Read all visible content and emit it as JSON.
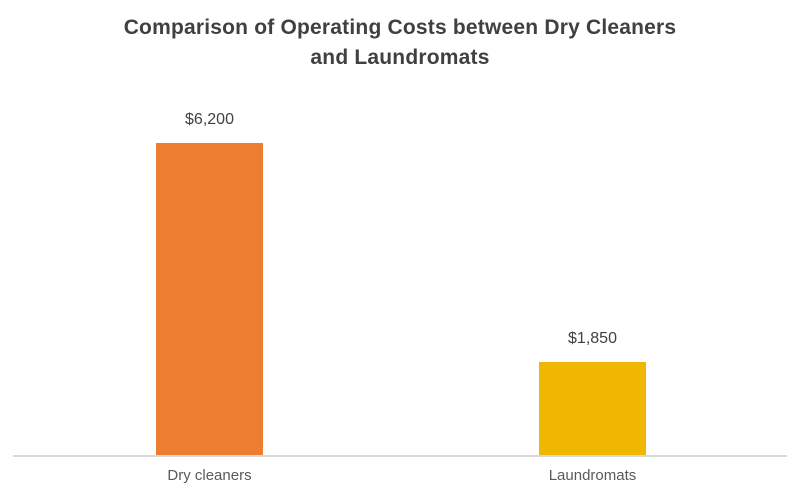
{
  "header": {
    "title_line1": "Comparison of Operating Costs between Dry Cleaners",
    "title_line2": "and Laundromats"
  },
  "chart_data": {
    "type": "bar",
    "title": "Comparison of Operating Costs between Dry Cleaners and Laundromats",
    "categories": [
      "Dry cleaners",
      "Laundromats"
    ],
    "values": [
      6200,
      1850
    ],
    "value_labels": [
      "$6,200",
      "$1,850"
    ],
    "series_colors": [
      "#ED7D31",
      "#EFB700"
    ],
    "xlabel": "",
    "ylabel": "",
    "ylim": [
      0,
      6600
    ],
    "grid": false,
    "legend": "none",
    "title_color": "#404040",
    "value_label_color": "#404040",
    "category_label_color": "#595959",
    "axis_line_color": "#D9D9D9",
    "background_color": "#FFFFFF"
  }
}
